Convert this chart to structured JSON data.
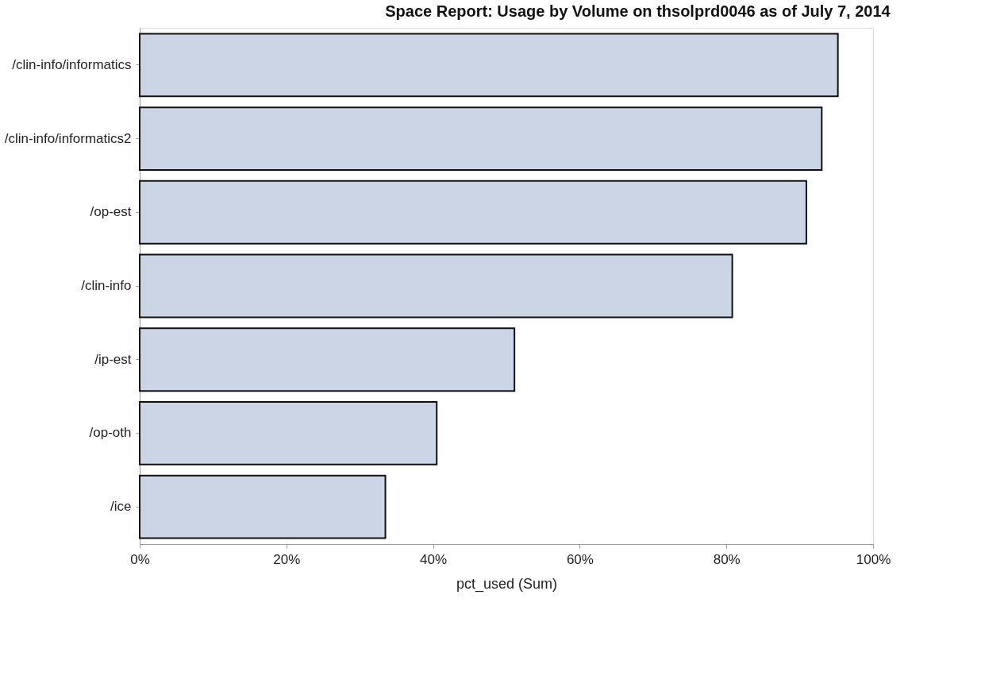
{
  "chart_data": {
    "type": "bar",
    "orientation": "horizontal",
    "title": "Space Report: Usage by Volume on thsolprd0046 as of July 7, 2014",
    "categories": [
      "/clin-info/informatics",
      "/clin-info/informatics2",
      "/op-est",
      "/clin-info",
      "/ip-est",
      "/op-oth",
      "/ice"
    ],
    "values": [
      95.2,
      93.0,
      90.9,
      80.8,
      51.1,
      40.5,
      33.5
    ],
    "color": "#cbd5e5",
    "xlabel": "pct_used (Sum)",
    "xlim": [
      0,
      100
    ],
    "xticks": [
      {
        "value": 0,
        "label": "0%"
      },
      {
        "value": 20,
        "label": "20%"
      },
      {
        "value": 40,
        "label": "40%"
      },
      {
        "value": 60,
        "label": "60%"
      },
      {
        "value": 80,
        "label": "80%"
      },
      {
        "value": 100,
        "label": "100%"
      }
    ],
    "grid": false
  }
}
